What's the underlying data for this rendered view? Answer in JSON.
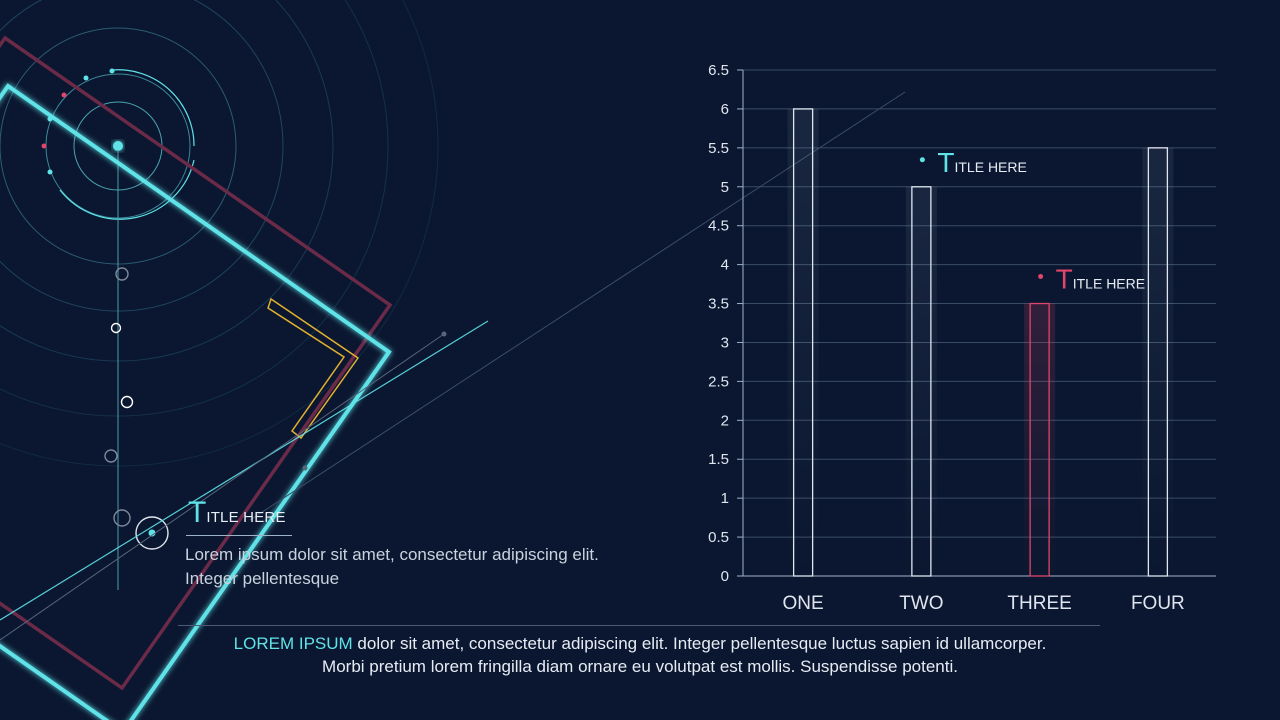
{
  "colors": {
    "background": "#0b1730",
    "cyan": "#5fe3e8",
    "pink": "#e0456a",
    "maroon": "#6a2a48",
    "yellow": "#e0b030",
    "bar_default": "#dfe6f0",
    "bar_highlight": "#e0456a"
  },
  "left_block": {
    "title_initial": "T",
    "title_rest": "ITLE HERE",
    "body": "Lorem ipsum dolor sit amet, consectetur adipiscing elit. Integer pellentesque"
  },
  "bottom": {
    "highlight": "LOREM IPSUM",
    "line1_rest": " dolor sit amet, consectetur adipiscing elit. Integer pellentesque luctus sapien id ullamcorper.",
    "line2": "Morbi pretium lorem fringilla diam ornare eu volutpat est mollis. Suspendisse potenti."
  },
  "chart_data": {
    "type": "bar",
    "title": "",
    "xlabel": "",
    "ylabel": "",
    "categories": [
      "ONE",
      "TWO",
      "THREE",
      "FOUR"
    ],
    "values": [
      6,
      5,
      3.5,
      5.5
    ],
    "ylim": [
      0,
      6.5
    ],
    "yticks": [
      "0",
      "0.5",
      "1",
      "1.5",
      "2",
      "2.5",
      "3",
      "3.5",
      "4",
      "4.5",
      "5",
      "5.5",
      "6",
      "6.5"
    ],
    "grid": true,
    "highlight_index": 2,
    "annotations": [
      {
        "category": "TWO",
        "initial": "T",
        "rest": "ITLE HERE",
        "color": "#5fe3e8"
      },
      {
        "category": "THREE",
        "initial": "T",
        "rest": "ITLE HERE",
        "color": "#e0456a"
      }
    ]
  }
}
